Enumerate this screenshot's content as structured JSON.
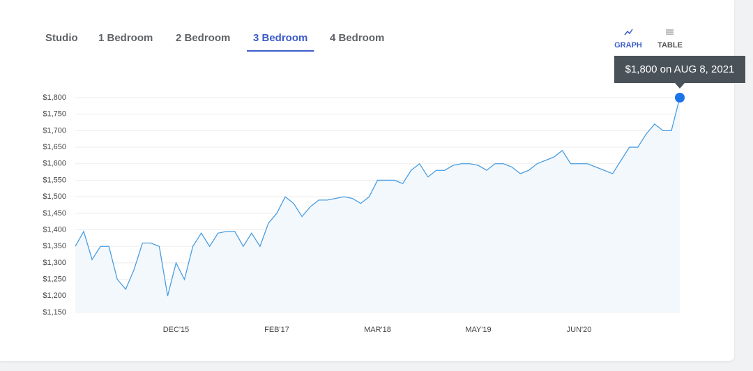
{
  "tabs": [
    {
      "label": "Studio"
    },
    {
      "label": "1 Bedroom"
    },
    {
      "label": "2 Bedroom"
    },
    {
      "label": "3 Bedroom",
      "active": true
    },
    {
      "label": "4 Bedroom"
    }
  ],
  "views": [
    {
      "label": "GRAPH",
      "active": true
    },
    {
      "label": "TABLE"
    }
  ],
  "tooltip": "$1,800 on AUG 8, 2021",
  "chart_data": {
    "type": "line",
    "categories": [
      null,
      null,
      null,
      null,
      null,
      null,
      null,
      null,
      null,
      null,
      null,
      null,
      "DEC'15",
      null,
      null,
      null,
      null,
      null,
      null,
      null,
      null,
      null,
      null,
      null,
      "FEB'17",
      null,
      null,
      null,
      null,
      null,
      null,
      null,
      null,
      null,
      null,
      null,
      "MAR'18",
      null,
      null,
      null,
      null,
      null,
      null,
      null,
      null,
      null,
      null,
      null,
      "MAY'19",
      null,
      null,
      null,
      null,
      null,
      null,
      null,
      null,
      null,
      null,
      null,
      "JUN'20",
      null,
      null,
      null,
      null,
      null,
      null,
      null,
      null,
      null,
      null,
      null,
      null
    ],
    "series": [
      {
        "color": "#4a9de0",
        "values": [
          1350,
          1395,
          1310,
          1350,
          1350,
          1250,
          1220,
          1280,
          1360,
          1360,
          1350,
          1200,
          1300,
          1250,
          1350,
          1390,
          1350,
          1390,
          1395,
          1395,
          1350,
          1390,
          1350,
          1420,
          1450,
          1500,
          1480,
          1440,
          1470,
          1490,
          1490,
          1495,
          1500,
          1495,
          1480,
          1500,
          1550,
          1550,
          1550,
          1540,
          1580,
          1600,
          1560,
          1580,
          1580,
          1595,
          1600,
          1600,
          1595,
          1580,
          1600,
          1600,
          1590,
          1570,
          1580,
          1600,
          1610,
          1620,
          1640,
          1600,
          1600,
          1600,
          1590,
          1580,
          1570,
          1610,
          1650,
          1650,
          1690,
          1720,
          1700,
          1700,
          1800
        ]
      }
    ],
    "ylim": [
      1150,
      1800
    ],
    "yticks": [
      {
        "value": 1150,
        "label": "$1,150"
      },
      {
        "value": 1200,
        "label": "$1,200"
      },
      {
        "value": 1250,
        "label": "$1,250"
      },
      {
        "value": 1300,
        "label": "$1,300"
      },
      {
        "value": 1350,
        "label": "$1,350"
      },
      {
        "value": 1400,
        "label": "$1,400"
      },
      {
        "value": 1450,
        "label": "$1,450"
      },
      {
        "value": 1500,
        "label": "$1,500"
      },
      {
        "value": 1550,
        "label": "$1,550"
      },
      {
        "value": 1600,
        "label": "$1,600"
      },
      {
        "value": 1650,
        "label": "$1,650"
      },
      {
        "value": 1700,
        "label": "$1,700"
      },
      {
        "value": 1750,
        "label": "$1,750"
      },
      {
        "value": 1800,
        "label": "$1,800"
      }
    ],
    "grid": true
  }
}
